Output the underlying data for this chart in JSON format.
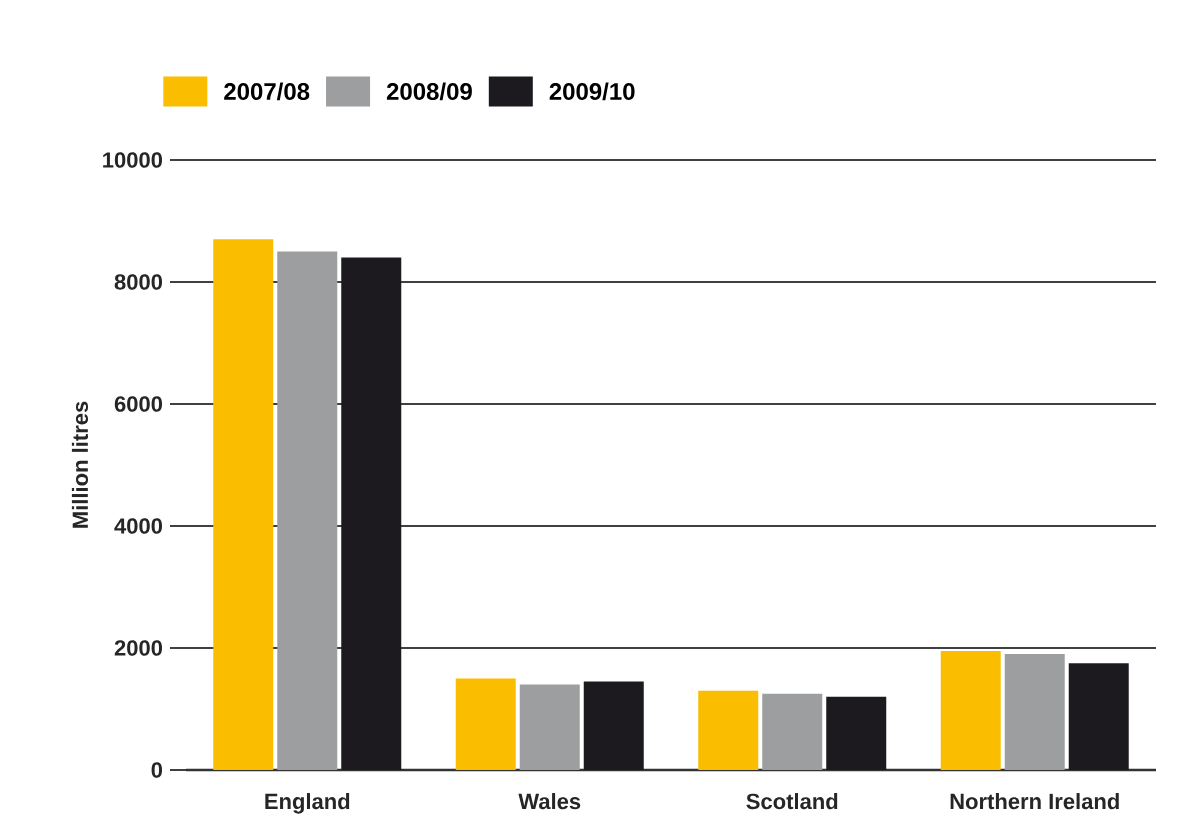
{
  "chart_data": {
    "type": "bar",
    "ylabel": "Million litres",
    "categories": [
      "England",
      "Wales",
      "Scotland",
      "Northern Ireland"
    ],
    "series": [
      {
        "name": "2007/08",
        "color": "#fbbd00",
        "values": [
          8700,
          1500,
          1300,
          1950
        ]
      },
      {
        "name": "2008/09",
        "color": "#9d9ea0",
        "values": [
          8500,
          1400,
          1250,
          1900
        ]
      },
      {
        "name": "2009/10",
        "color": "#1c1a1f",
        "values": [
          8400,
          1450,
          1200,
          1750
        ]
      }
    ],
    "ylim": [
      0,
      10000
    ],
    "yticks": [
      0,
      2000,
      4000,
      6000,
      8000,
      10000
    ],
    "grid": "y",
    "legend": "top left"
  }
}
